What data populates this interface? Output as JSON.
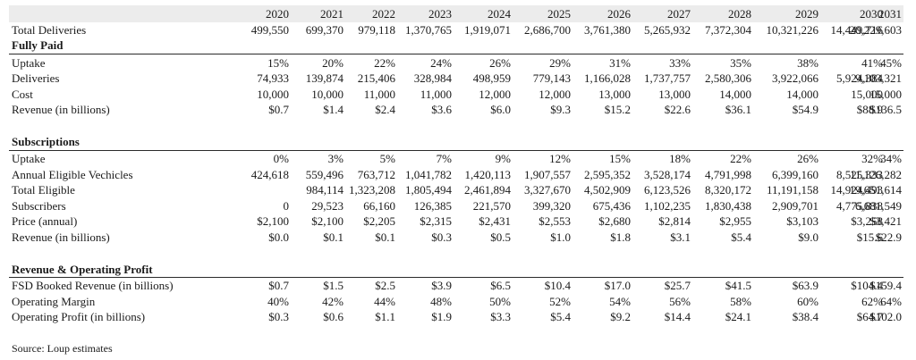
{
  "years": [
    "2020",
    "2021",
    "2022",
    "2023",
    "2024",
    "2025",
    "2026",
    "2027",
    "2028",
    "2029",
    "2030",
    "2031"
  ],
  "total_deliveries": {
    "label": "Total Deliveries",
    "values": [
      "499,550",
      "699,370",
      "979,118",
      "1,370,765",
      "1,919,071",
      "2,686,700",
      "3,761,380",
      "5,265,932",
      "7,372,304",
      "10,321,226",
      "14,449,716",
      "20,229,603"
    ]
  },
  "fully_paid": {
    "title": "Fully Paid",
    "rows": [
      {
        "label": "Uptake",
        "values": [
          "15%",
          "20%",
          "22%",
          "24%",
          "26%",
          "29%",
          "31%",
          "33%",
          "35%",
          "38%",
          "41%",
          "45%"
        ]
      },
      {
        "label": "Deliveries",
        "values": [
          "74,933",
          "139,874",
          "215,406",
          "328,984",
          "498,959",
          "779,143",
          "1,166,028",
          "1,737,757",
          "2,580,306",
          "3,922,066",
          "5,924,384",
          "9,103,321"
        ]
      },
      {
        "label": "Cost",
        "values": [
          "10,000",
          "10,000",
          "11,000",
          "11,000",
          "12,000",
          "12,000",
          "13,000",
          "13,000",
          "14,000",
          "14,000",
          "15,000",
          "15,000"
        ]
      },
      {
        "label": "Revenue (in billions)",
        "values": [
          "$0.7",
          "$1.4",
          "$2.4",
          "$3.6",
          "$6.0",
          "$9.3",
          "$15.2",
          "$22.6",
          "$36.1",
          "$54.9",
          "$88.9",
          "$136.5"
        ]
      }
    ]
  },
  "subscriptions": {
    "title": "Subscriptions",
    "rows": [
      {
        "label": "Uptake",
        "values": [
          "0%",
          "3%",
          "5%",
          "7%",
          "9%",
          "12%",
          "15%",
          "18%",
          "22%",
          "26%",
          "32%",
          "34%"
        ]
      },
      {
        "label": "Annual Eligible Vechicles",
        "values": [
          "424,618",
          "559,496",
          "763,712",
          "1,041,782",
          "1,420,113",
          "1,907,557",
          "2,595,352",
          "3,528,174",
          "4,791,998",
          "6,399,160",
          "8,525,333",
          "11,126,282"
        ]
      },
      {
        "label": "Total Eligible",
        "values": [
          "",
          "984,114",
          "1,323,208",
          "1,805,494",
          "2,461,894",
          "3,327,670",
          "4,502,909",
          "6,123,526",
          "8,320,172",
          "11,191,158",
          "14,924,493",
          "19,651,614"
        ]
      },
      {
        "label": "Subscribers",
        "values": [
          "0",
          "29,523",
          "66,160",
          "126,385",
          "221,570",
          "399,320",
          "675,436",
          "1,102,235",
          "1,830,438",
          "2,909,701",
          "4,775,838",
          "6,681,549"
        ]
      },
      {
        "label": "Price (annual)",
        "values": [
          "$2,100",
          "$2,100",
          "$2,205",
          "$2,315",
          "$2,431",
          "$2,553",
          "$2,680",
          "$2,814",
          "$2,955",
          "$3,103",
          "$3,258",
          "$3,421"
        ]
      },
      {
        "label": "Revenue (in billions)",
        "values": [
          "$0.0",
          "$0.1",
          "$0.1",
          "$0.3",
          "$0.5",
          "$1.0",
          "$1.8",
          "$3.1",
          "$5.4",
          "$9.0",
          "$15.6",
          "$22.9"
        ]
      }
    ]
  },
  "revenue_operating_profit": {
    "title": "Revenue & Operating Profit",
    "rows": [
      {
        "label": "FSD Booked Revenue (in billions)",
        "values": [
          "$0.7",
          "$1.5",
          "$2.5",
          "$3.9",
          "$6.5",
          "$10.4",
          "$17.0",
          "$25.7",
          "$41.5",
          "$63.9",
          "$104.4",
          "$159.4"
        ]
      },
      {
        "label": "Operating Margin",
        "values": [
          "40%",
          "42%",
          "44%",
          "48%",
          "50%",
          "52%",
          "54%",
          "56%",
          "58%",
          "60%",
          "62%",
          "64%"
        ]
      },
      {
        "label": "Operating Profit (in billions)",
        "values": [
          "$0.3",
          "$0.6",
          "$1.1",
          "$1.9",
          "$3.3",
          "$5.4",
          "$9.2",
          "$14.4",
          "$24.1",
          "$38.4",
          "$64.7",
          "$102.0"
        ]
      }
    ]
  },
  "source": "Source: Loup estimates"
}
